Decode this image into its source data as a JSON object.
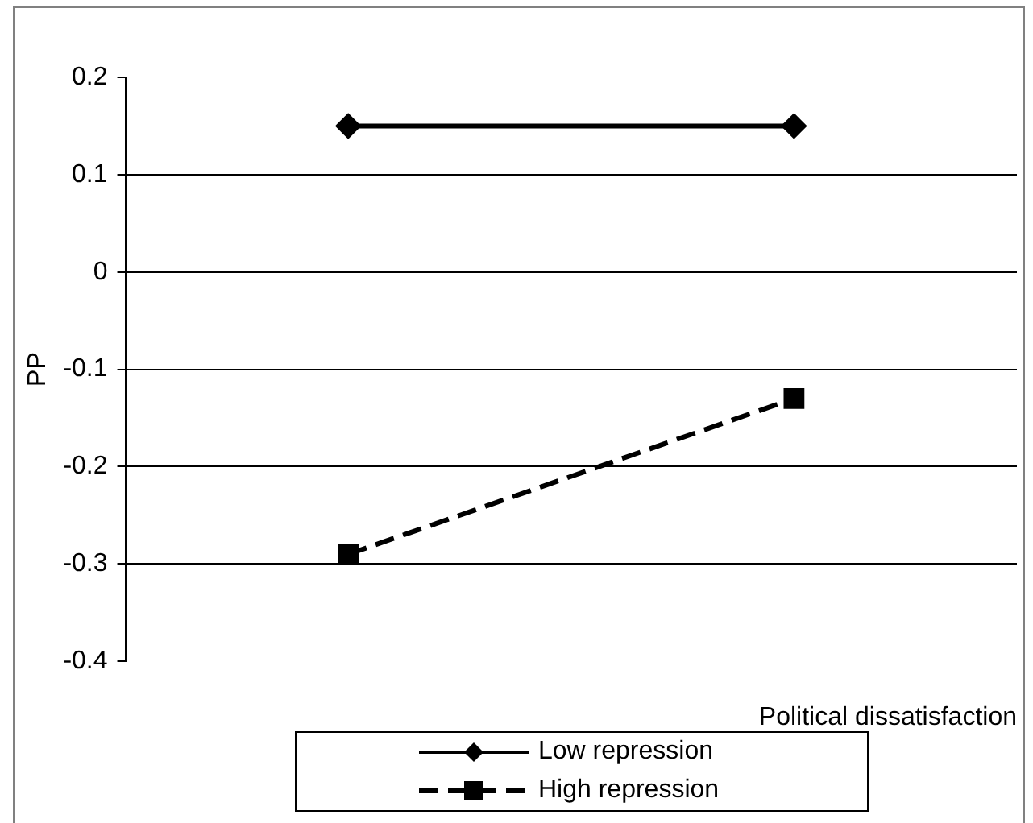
{
  "chart_data": {
    "type": "line",
    "xlabel": "Political dissatisfaction",
    "ylabel": "PP",
    "categories": [
      null,
      null
    ],
    "series": [
      {
        "name": "Low repression",
        "color": "#000000",
        "values": [
          0.15,
          0.15
        ],
        "marker": "diamond",
        "line_style": "solid"
      },
      {
        "name": "High repression",
        "color": "#000000",
        "values": [
          -0.29,
          -0.13
        ],
        "marker": "square",
        "line_style": "dashed"
      }
    ],
    "ylim": [
      -0.4,
      0.2
    ],
    "yticks": [
      -0.4,
      -0.3,
      -0.2,
      -0.1,
      0,
      0.1,
      0.2
    ],
    "grid": "y",
    "legend": "bottom"
  }
}
